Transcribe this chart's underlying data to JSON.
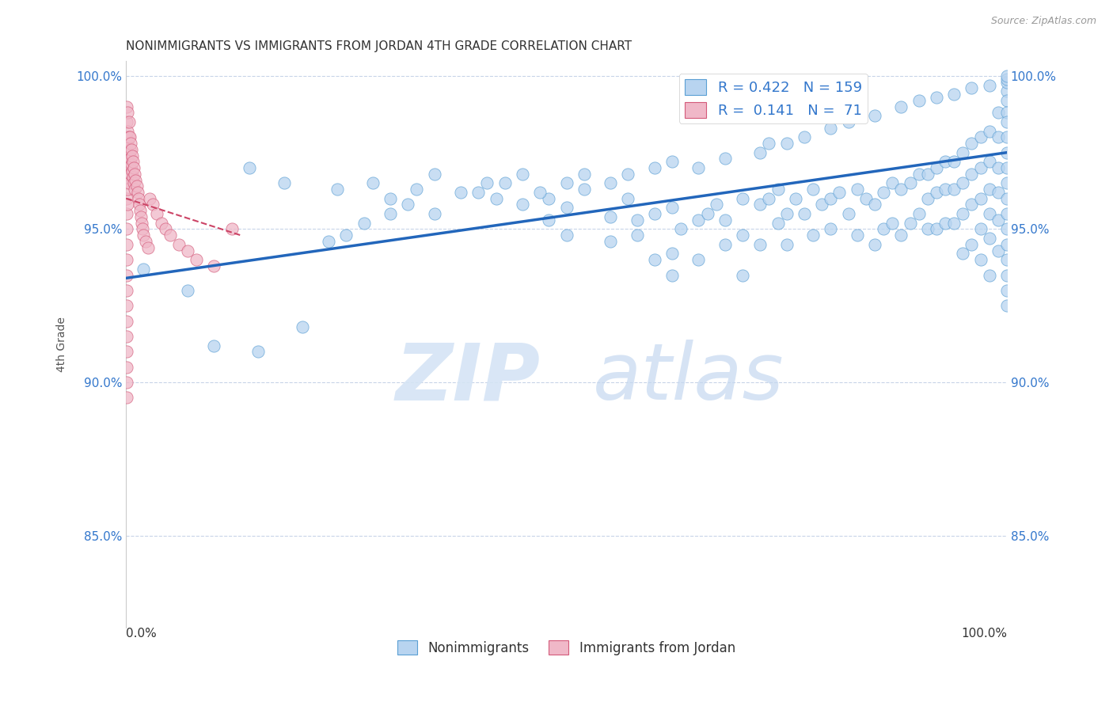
{
  "title": "NONIMMIGRANTS VS IMMIGRANTS FROM JORDAN 4TH GRADE CORRELATION CHART",
  "source": "Source: ZipAtlas.com",
  "ylabel": "4th Grade",
  "watermark_zip": "ZIP",
  "watermark_atlas": "atlas",
  "blue_R": 0.422,
  "blue_N": 159,
  "pink_R": 0.141,
  "pink_N": 71,
  "blue_color": "#b8d4f0",
  "pink_color": "#f0b8c8",
  "blue_edge_color": "#5a9fd4",
  "pink_edge_color": "#d45a7a",
  "blue_line_color": "#2266bb",
  "pink_line_color": "#cc4466",
  "background_color": "#ffffff",
  "grid_color": "#c8d4e8",
  "axis_label_color": "#3377cc",
  "title_color": "#333333",
  "blue_scatter_x": [
    0.02,
    0.07,
    0.14,
    0.18,
    0.24,
    0.28,
    0.35,
    0.35,
    0.38,
    0.42,
    0.45,
    0.48,
    0.48,
    0.5,
    0.5,
    0.52,
    0.55,
    0.55,
    0.57,
    0.58,
    0.58,
    0.6,
    0.6,
    0.62,
    0.62,
    0.62,
    0.63,
    0.65,
    0.65,
    0.66,
    0.67,
    0.68,
    0.68,
    0.7,
    0.7,
    0.7,
    0.72,
    0.72,
    0.73,
    0.74,
    0.74,
    0.75,
    0.75,
    0.76,
    0.77,
    0.78,
    0.78,
    0.79,
    0.8,
    0.8,
    0.81,
    0.82,
    0.83,
    0.83,
    0.84,
    0.85,
    0.85,
    0.86,
    0.86,
    0.87,
    0.87,
    0.88,
    0.88,
    0.89,
    0.89,
    0.9,
    0.9,
    0.91,
    0.91,
    0.91,
    0.92,
    0.92,
    0.92,
    0.93,
    0.93,
    0.93,
    0.94,
    0.94,
    0.94,
    0.95,
    0.95,
    0.95,
    0.95,
    0.96,
    0.96,
    0.96,
    0.96,
    0.97,
    0.97,
    0.97,
    0.97,
    0.97,
    0.98,
    0.98,
    0.98,
    0.98,
    0.98,
    0.98,
    0.99,
    0.99,
    0.99,
    0.99,
    0.99,
    0.99,
    1.0,
    1.0,
    1.0,
    1.0,
    1.0,
    1.0,
    1.0,
    1.0,
    1.0,
    1.0,
    1.0,
    1.0,
    1.0,
    1.0,
    1.0,
    1.0,
    0.1,
    0.15,
    0.2,
    0.23,
    0.25,
    0.27,
    0.3,
    0.3,
    0.32,
    0.33,
    0.4,
    0.41,
    0.43,
    0.45,
    0.47,
    0.5,
    0.52,
    0.55,
    0.57,
    0.6,
    0.62,
    0.65,
    0.68,
    0.72,
    0.73,
    0.75,
    0.77,
    0.8,
    0.82,
    0.85,
    0.88,
    0.9,
    0.92,
    0.94,
    0.96,
    0.98,
    1.0,
    1.0,
    1.0
  ],
  "blue_scatter_y": [
    0.937,
    0.93,
    0.97,
    0.965,
    0.963,
    0.965,
    0.955,
    0.968,
    0.962,
    0.96,
    0.958,
    0.96,
    0.953,
    0.957,
    0.948,
    0.963,
    0.954,
    0.946,
    0.96,
    0.953,
    0.948,
    0.955,
    0.94,
    0.957,
    0.942,
    0.935,
    0.95,
    0.953,
    0.94,
    0.955,
    0.958,
    0.953,
    0.945,
    0.96,
    0.948,
    0.935,
    0.958,
    0.945,
    0.96,
    0.952,
    0.963,
    0.955,
    0.945,
    0.96,
    0.955,
    0.963,
    0.948,
    0.958,
    0.96,
    0.95,
    0.962,
    0.955,
    0.963,
    0.948,
    0.96,
    0.958,
    0.945,
    0.962,
    0.95,
    0.965,
    0.952,
    0.963,
    0.948,
    0.965,
    0.952,
    0.968,
    0.955,
    0.968,
    0.96,
    0.95,
    0.97,
    0.962,
    0.95,
    0.972,
    0.963,
    0.952,
    0.972,
    0.963,
    0.952,
    0.975,
    0.965,
    0.955,
    0.942,
    0.978,
    0.968,
    0.958,
    0.945,
    0.98,
    0.97,
    0.96,
    0.95,
    0.94,
    0.982,
    0.972,
    0.963,
    0.955,
    0.947,
    0.935,
    0.988,
    0.98,
    0.97,
    0.962,
    0.953,
    0.943,
    0.995,
    0.992,
    0.988,
    0.985,
    0.98,
    0.975,
    0.97,
    0.965,
    0.96,
    0.955,
    0.95,
    0.945,
    0.94,
    0.935,
    0.93,
    0.925,
    0.912,
    0.91,
    0.918,
    0.946,
    0.948,
    0.952,
    0.955,
    0.96,
    0.958,
    0.963,
    0.962,
    0.965,
    0.965,
    0.968,
    0.962,
    0.965,
    0.968,
    0.965,
    0.968,
    0.97,
    0.972,
    0.97,
    0.973,
    0.975,
    0.978,
    0.978,
    0.98,
    0.983,
    0.985,
    0.987,
    0.99,
    0.992,
    0.993,
    0.994,
    0.996,
    0.997,
    0.998,
    0.999,
    1.0
  ],
  "pink_scatter_x": [
    0.001,
    0.001,
    0.001,
    0.001,
    0.001,
    0.001,
    0.001,
    0.001,
    0.001,
    0.001,
    0.001,
    0.001,
    0.001,
    0.001,
    0.001,
    0.001,
    0.001,
    0.001,
    0.001,
    0.001,
    0.002,
    0.002,
    0.002,
    0.002,
    0.002,
    0.002,
    0.002,
    0.003,
    0.003,
    0.003,
    0.003,
    0.003,
    0.004,
    0.004,
    0.004,
    0.005,
    0.005,
    0.005,
    0.006,
    0.006,
    0.007,
    0.007,
    0.008,
    0.008,
    0.009,
    0.009,
    0.01,
    0.01,
    0.011,
    0.012,
    0.013,
    0.014,
    0.015,
    0.016,
    0.017,
    0.018,
    0.019,
    0.02,
    0.022,
    0.025,
    0.027,
    0.03,
    0.035,
    0.04,
    0.045,
    0.05,
    0.06,
    0.07,
    0.08,
    0.1,
    0.12
  ],
  "pink_scatter_y": [
    0.99,
    0.985,
    0.98,
    0.975,
    0.97,
    0.965,
    0.96,
    0.955,
    0.95,
    0.945,
    0.94,
    0.935,
    0.93,
    0.925,
    0.92,
    0.915,
    0.91,
    0.905,
    0.9,
    0.895,
    0.988,
    0.982,
    0.978,
    0.973,
    0.968,
    0.963,
    0.958,
    0.985,
    0.98,
    0.975,
    0.97,
    0.965,
    0.98,
    0.976,
    0.971,
    0.978,
    0.973,
    0.968,
    0.976,
    0.971,
    0.974,
    0.969,
    0.972,
    0.967,
    0.97,
    0.965,
    0.968,
    0.963,
    0.966,
    0.964,
    0.962,
    0.96,
    0.958,
    0.956,
    0.954,
    0.952,
    0.95,
    0.948,
    0.946,
    0.944,
    0.96,
    0.958,
    0.955,
    0.952,
    0.95,
    0.948,
    0.945,
    0.943,
    0.94,
    0.938,
    0.95
  ],
  "xlim": [
    0.0,
    1.0
  ],
  "ylim": [
    0.82,
    1.005
  ],
  "yticks": [
    0.85,
    0.9,
    0.95,
    1.0
  ],
  "ytick_labels": [
    "85.0%",
    "90.0%",
    "95.0%",
    "100.0%"
  ],
  "blue_trend_x": [
    0.0,
    1.0
  ],
  "blue_trend_y": [
    0.934,
    0.975
  ],
  "pink_trend_x": [
    0.0,
    0.13
  ],
  "pink_trend_y": [
    0.96,
    0.948
  ]
}
